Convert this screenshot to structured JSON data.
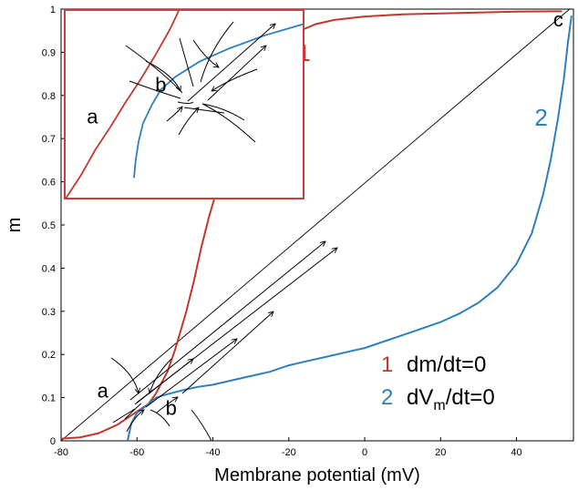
{
  "chart_data": {
    "type": "line",
    "title": "",
    "xlabel": "Membrane potential (mV)",
    "ylabel": "m",
    "xlim": [
      -80,
      55
    ],
    "ylim": [
      0,
      1
    ],
    "x_ticks": [
      "-80",
      "-60",
      "-40",
      "-20",
      "0",
      "20",
      "40"
    ],
    "y_ticks": [
      "0",
      "0.1",
      "0.2",
      "0.3",
      "0.4",
      "0.5",
      "0.6",
      "0.7",
      "0.8",
      "0.9",
      "1"
    ],
    "colors": {
      "series1": "#c0392b",
      "series2": "#2e7fbf",
      "inset_frame": "#d03a3a"
    },
    "series": [
      {
        "label_number": "1",
        "legend_number": "1",
        "legend_text": "dm/dt=0",
        "color": "#c0392b",
        "points": [
          [
            -80,
            0.005
          ],
          [
            -75,
            0.008
          ],
          [
            -70,
            0.018
          ],
          [
            -65,
            0.038
          ],
          [
            -60,
            0.068
          ],
          [
            -57,
            0.085
          ],
          [
            -55,
            0.11
          ],
          [
            -52,
            0.16
          ],
          [
            -50,
            0.21
          ],
          [
            -47,
            0.3
          ],
          [
            -45,
            0.37
          ],
          [
            -43,
            0.45
          ],
          [
            -41,
            0.52
          ],
          [
            -39,
            0.58
          ],
          [
            -37,
            0.64
          ],
          [
            -35,
            0.69
          ],
          [
            -33,
            0.73
          ],
          [
            -31,
            0.77
          ],
          [
            -29,
            0.82
          ],
          [
            -27,
            0.86
          ],
          [
            -25,
            0.885
          ],
          [
            -22,
            0.905
          ],
          [
            -20,
            0.93
          ],
          [
            -17,
            0.95
          ],
          [
            -13,
            0.965
          ],
          [
            -8,
            0.975
          ],
          [
            0,
            0.983
          ],
          [
            10,
            0.988
          ],
          [
            20,
            0.99
          ],
          [
            30,
            0.992
          ],
          [
            40,
            0.994
          ],
          [
            52,
            0.995
          ]
        ]
      },
      {
        "label_number": "2",
        "legend_number": "2",
        "legend_text_main": "dV",
        "legend_text_sub": "m",
        "legend_text_tail": "/dt=0",
        "color": "#2e7fbf",
        "points": [
          [
            -62.5,
            0
          ],
          [
            -61.5,
            0.04
          ],
          [
            -60,
            0.065
          ],
          [
            -57,
            0.085
          ],
          [
            -55,
            0.1
          ],
          [
            -52,
            0.108
          ],
          [
            -48,
            0.117
          ],
          [
            -44,
            0.125
          ],
          [
            -40,
            0.13
          ],
          [
            -35,
            0.14
          ],
          [
            -30,
            0.15
          ],
          [
            -25,
            0.16
          ],
          [
            -20,
            0.175
          ],
          [
            -15,
            0.185
          ],
          [
            -10,
            0.195
          ],
          [
            -5,
            0.205
          ],
          [
            0,
            0.215
          ],
          [
            5,
            0.23
          ],
          [
            10,
            0.245
          ],
          [
            15,
            0.26
          ],
          [
            20,
            0.275
          ],
          [
            25,
            0.295
          ],
          [
            30,
            0.32
          ],
          [
            35,
            0.355
          ],
          [
            40,
            0.41
          ],
          [
            44,
            0.48
          ],
          [
            47,
            0.57
          ],
          [
            49,
            0.65
          ],
          [
            51,
            0.75
          ],
          [
            52.5,
            0.84
          ],
          [
            53.5,
            0.92
          ],
          [
            54.5,
            0.985
          ]
        ]
      }
    ],
    "diagonal": [
      [
        -80,
        0
      ],
      [
        54,
        1
      ]
    ],
    "point_labels": [
      {
        "text": "a",
        "x": -69,
        "y": 0.1
      },
      {
        "text": "b",
        "x": -51,
        "y": 0.06
      },
      {
        "text": "c",
        "x": 51,
        "y": 0.96
      }
    ],
    "label_positions": {
      "series1": {
        "x": -16,
        "y": 0.88
      },
      "series2": {
        "x": 46.5,
        "y": 0.73
      }
    },
    "inset": {
      "xlim": [
        -60,
        -52
      ],
      "ylim": [
        0.03,
        0.13
      ],
      "point_labels": [
        {
          "text": "a",
          "x": -59.1,
          "y": 0.07
        },
        {
          "text": "b",
          "x": -56.8,
          "y": 0.087
        }
      ],
      "series": [
        {
          "color": "#c0392b",
          "points": [
            [
              -60,
              0.03
            ],
            [
              -59.5,
              0.042
            ],
            [
              -59,
              0.056
            ],
            [
              -58.5,
              0.068
            ],
            [
              -58,
              0.081
            ],
            [
              -57.5,
              0.093
            ],
            [
              -57,
              0.106
            ],
            [
              -56.5,
              0.12
            ],
            [
              -56.2,
              0.13
            ]
          ]
        },
        {
          "color": "#2e7fbf",
          "points": [
            [
              -57.7,
              0.041
            ],
            [
              -57.65,
              0.05
            ],
            [
              -57.55,
              0.06
            ],
            [
              -57.4,
              0.07
            ],
            [
              -57.1,
              0.08
            ],
            [
              -56.8,
              0.088
            ],
            [
              -56.3,
              0.095
            ],
            [
              -55.5,
              0.103
            ],
            [
              -54.5,
              0.11
            ],
            [
              -53.3,
              0.117
            ],
            [
              -52,
              0.123
            ]
          ]
        }
      ]
    }
  }
}
